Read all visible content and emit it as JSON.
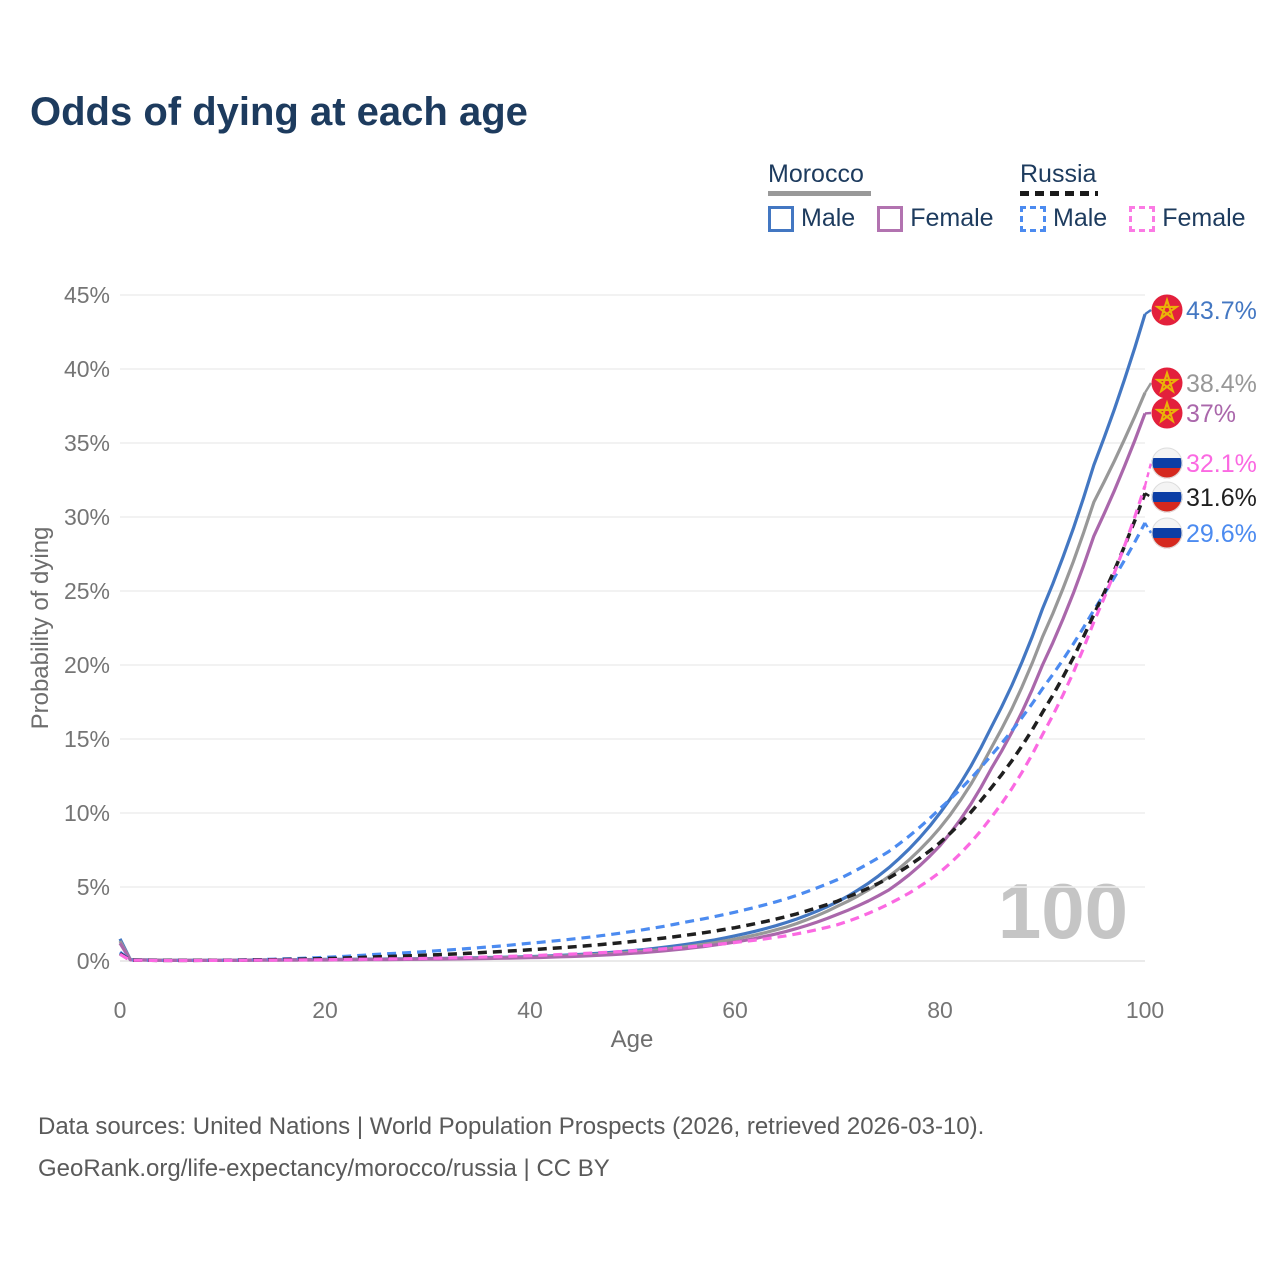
{
  "title": "Odds of dying at each age",
  "legend": {
    "groups": [
      {
        "country": "Morocco",
        "line_style": "solid",
        "underline_color": "#999999",
        "items": [
          {
            "label": "Male",
            "color": "#4377c2",
            "dashed": false
          },
          {
            "label": "Female",
            "color": "#b273b0",
            "dashed": false
          }
        ]
      },
      {
        "country": "Russia",
        "line_style": "dashed",
        "underline_color": "#1a1a1a",
        "items": [
          {
            "label": "Male",
            "color": "#4c8bf0",
            "dashed": true
          },
          {
            "label": "Female",
            "color": "#fb7ae4",
            "dashed": true
          }
        ]
      }
    ]
  },
  "y_axis": {
    "title": "Probability of dying",
    "ticks": [
      {
        "value": 0,
        "label": "0%"
      },
      {
        "value": 5,
        "label": "5%"
      },
      {
        "value": 10,
        "label": "10%"
      },
      {
        "value": 15,
        "label": "15%"
      },
      {
        "value": 20,
        "label": "20%"
      },
      {
        "value": 25,
        "label": "25%"
      },
      {
        "value": 30,
        "label": "30%"
      },
      {
        "value": 35,
        "label": "35%"
      },
      {
        "value": 40,
        "label": "40%"
      },
      {
        "value": 45,
        "label": "45%"
      }
    ]
  },
  "x_axis": {
    "title": "Age",
    "ticks": [
      {
        "value": 0,
        "label": "0"
      },
      {
        "value": 20,
        "label": "20"
      },
      {
        "value": 40,
        "label": "40"
      },
      {
        "value": 60,
        "label": "60"
      },
      {
        "value": 80,
        "label": "80"
      },
      {
        "value": 100,
        "label": "100"
      }
    ]
  },
  "watermark": "100",
  "footer": {
    "line1": "Data sources: United Nations | World Population Prospects (2026, retrieved 2026-03-10).",
    "line2": "GeoRank.org/life-expectancy/morocco/russia | CC BY"
  },
  "chart_data": {
    "type": "line",
    "title": "Odds of dying at each age",
    "xlabel": "Age",
    "ylabel": "Probability of dying",
    "xlim": [
      0,
      100
    ],
    "ylim": [
      0,
      45
    ],
    "grid": "horizontal",
    "legend_position": "top-right",
    "x": [
      0,
      1,
      5,
      10,
      15,
      20,
      25,
      30,
      35,
      40,
      45,
      50,
      55,
      60,
      65,
      70,
      75,
      80,
      85,
      90,
      95,
      100
    ],
    "series": [
      {
        "id": "morocco-male",
        "name": "Morocco Male",
        "flag": "morocco",
        "color": "#4377c2",
        "dashed": false,
        "end_label": "43.7%",
        "end_value": 43.7,
        "values": [
          1.5,
          0.1,
          0.05,
          0.05,
          0.08,
          0.11,
          0.13,
          0.16,
          0.22,
          0.3,
          0.45,
          0.7,
          1.1,
          1.7,
          2.6,
          4.0,
          6.3,
          10.0,
          15.8,
          23.8,
          33.5,
          43.7
        ]
      },
      {
        "id": "morocco-both",
        "name": "Morocco",
        "flag": "morocco",
        "color": "#989898",
        "dashed": false,
        "end_label": "38.4%",
        "end_value": 38.4,
        "values": [
          1.35,
          0.09,
          0.05,
          0.05,
          0.07,
          0.09,
          0.11,
          0.14,
          0.19,
          0.26,
          0.39,
          0.6,
          0.95,
          1.48,
          2.3,
          3.7,
          5.7,
          9.0,
          14.4,
          21.9,
          31.0,
          38.4
        ]
      },
      {
        "id": "morocco-female",
        "name": "Morocco Female",
        "flag": "morocco",
        "color": "#aa67ab",
        "dashed": false,
        "end_label": "37%",
        "end_value": 37.0,
        "values": [
          1.2,
          0.08,
          0.04,
          0.04,
          0.06,
          0.07,
          0.09,
          0.12,
          0.16,
          0.22,
          0.33,
          0.52,
          0.82,
          1.28,
          2.0,
          3.15,
          4.8,
          7.8,
          13.0,
          20.0,
          28.7,
          37.0
        ]
      },
      {
        "id": "russia-male",
        "name": "Russia Male",
        "flag": "russia",
        "color": "#4c8bf0",
        "dashed": true,
        "end_label": "29.6%",
        "end_value": 29.6,
        "values": [
          0.6,
          0.06,
          0.04,
          0.06,
          0.12,
          0.25,
          0.45,
          0.65,
          0.9,
          1.2,
          1.55,
          2.0,
          2.6,
          3.3,
          4.2,
          5.5,
          7.4,
          10.3,
          13.9,
          18.4,
          23.7,
          29.6
        ]
      },
      {
        "id": "russia-both",
        "name": "Russia",
        "flag": "russia",
        "color": "#1f1f1f",
        "dashed": true,
        "end_label": "31.6%",
        "end_value": 31.6,
        "values": [
          0.5,
          0.05,
          0.04,
          0.05,
          0.09,
          0.16,
          0.28,
          0.4,
          0.56,
          0.76,
          1.0,
          1.32,
          1.72,
          2.25,
          3.0,
          4.05,
          5.6,
          8.0,
          11.7,
          16.8,
          23.4,
          31.6
        ]
      },
      {
        "id": "russia-female",
        "name": "Russia Female",
        "flag": "russia",
        "color": "#fb69e2",
        "dashed": true,
        "end_label": "32.1%",
        "end_value": 32.1,
        "values": [
          0.45,
          0.05,
          0.03,
          0.04,
          0.06,
          0.09,
          0.13,
          0.18,
          0.26,
          0.36,
          0.5,
          0.68,
          0.92,
          1.25,
          1.7,
          2.45,
          3.85,
          6.0,
          9.7,
          15.3,
          22.9,
          32.1
        ]
      }
    ]
  }
}
